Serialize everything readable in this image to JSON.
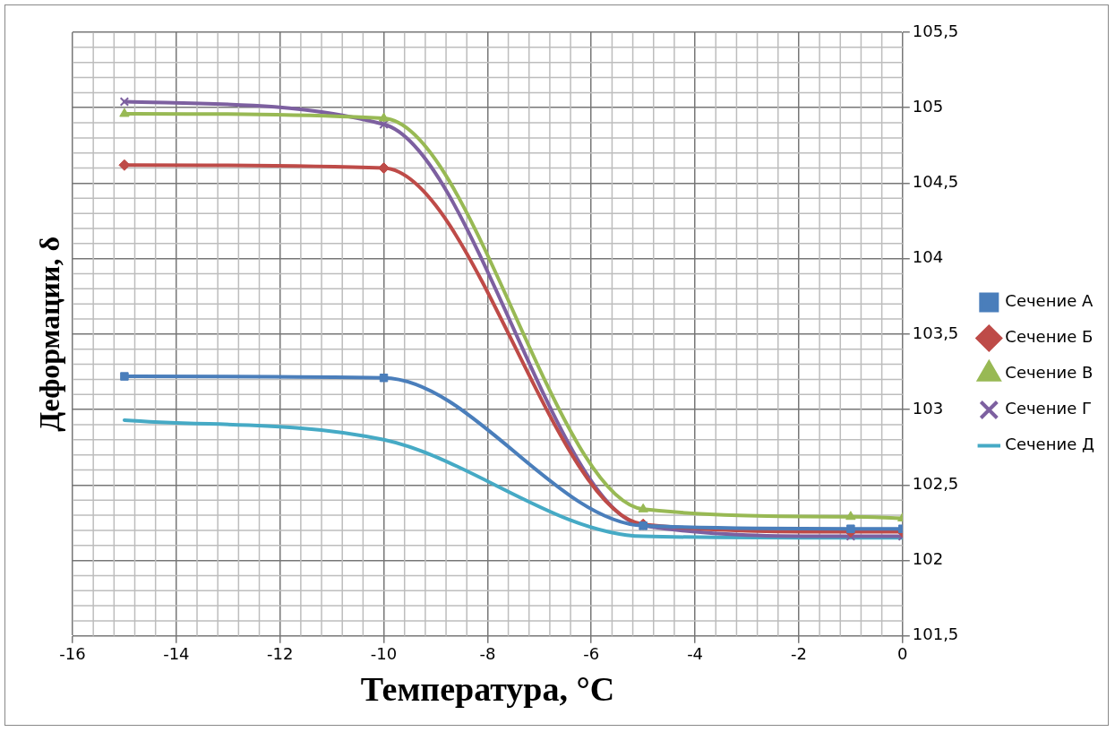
{
  "chart_data": {
    "type": "line",
    "xlabel": "Температура, °C",
    "ylabel": "Деформации, δ",
    "xlim": [
      -16,
      0
    ],
    "xticks": [
      -16,
      -14,
      -12,
      -10,
      -8,
      -6,
      -4,
      -2,
      0
    ],
    "ylim": [
      101.5,
      105.5
    ],
    "yticks": [
      {
        "value": 101.5,
        "label": "101,5"
      },
      102,
      {
        "value": 102.5,
        "label": "102,5"
      },
      103,
      {
        "value": 103.5,
        "label": "103,5"
      },
      104,
      {
        "value": 104.5,
        "label": "104,5"
      },
      105,
      {
        "value": 105.5,
        "label": "105,5"
      }
    ],
    "x": [
      -15,
      -10,
      -5,
      -1,
      0
    ],
    "series": [
      {
        "name": "Сечение А",
        "color": "#4a7ebb",
        "marker": "square",
        "values": [
          103.22,
          103.21,
          102.23,
          102.21,
          102.21
        ]
      },
      {
        "name": "Сечение Б",
        "color": "#be4b48",
        "marker": "diamond",
        "values": [
          104.62,
          104.6,
          102.24,
          102.19,
          102.19
        ]
      },
      {
        "name": "Сечение В",
        "color": "#98b954",
        "marker": "triangle",
        "values": [
          104.96,
          104.93,
          102.34,
          102.29,
          102.28
        ]
      },
      {
        "name": "Сечение Г",
        "color": "#7d60a0",
        "marker": "cross",
        "values": [
          105.04,
          104.89,
          102.23,
          102.16,
          102.16
        ]
      },
      {
        "name": "Сечение Д",
        "color": "#46aac5",
        "marker": "none",
        "values": [
          102.93,
          102.8,
          102.16,
          102.15,
          102.15
        ]
      }
    ],
    "grid": true,
    "legend": "right"
  }
}
